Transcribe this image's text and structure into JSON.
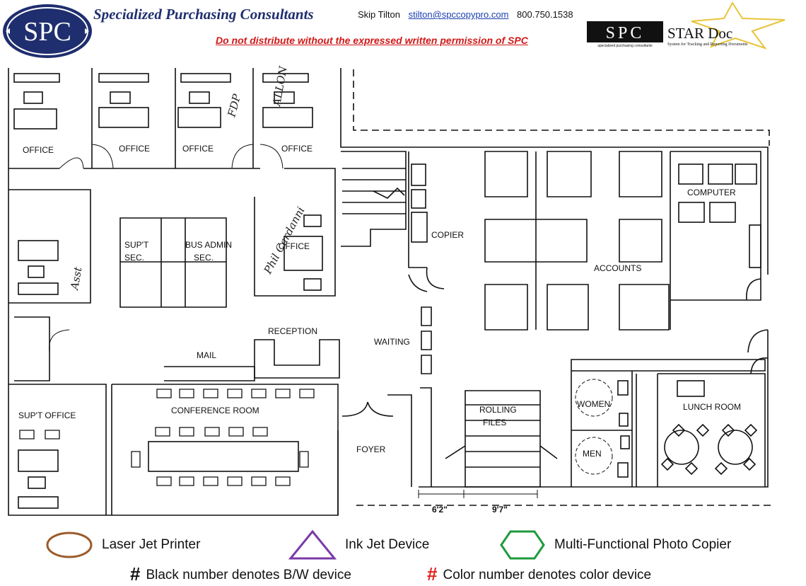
{
  "header": {
    "logo_text": "SPC",
    "company_name": "Specialized Purchasing Consultants",
    "contact_name": "Skip Tilton",
    "contact_email": "stilton@spccopypro.com",
    "contact_phone": "800.750.1538",
    "warning": "Do not distribute without the expressed written permission of SPC",
    "stardoc_logo": "SPC",
    "stardoc_title": "STAR Doc",
    "stardoc_subtitle": "specialized purchasing consultants",
    "stardoc_tagline": "System for Tracking and Reporting Documents"
  },
  "rooms": {
    "office_1": "OFFICE",
    "office_2": "OFFICE",
    "office_3": "OFFICE",
    "office_4": "OFFICE",
    "office_5": "OFFICE",
    "supt_sec_1": "SUP'T",
    "supt_sec_2": "SEC.",
    "bus_admin_1": "BUS ADMIN",
    "bus_admin_2": "SEC.",
    "reception": "RECEPTION",
    "mail": "MAIL",
    "waiting": "WAITING",
    "copier": "COPIER",
    "accounts": "ACCOUNTS",
    "computer": "COMPUTER",
    "supt_office": "SUP'T OFFICE",
    "conference": "CONFERENCE ROOM",
    "foyer": "FOYER",
    "rolling_1": "ROLLING",
    "rolling_2": "FILES",
    "women": "WOMEN",
    "men": "MEN",
    "lunch": "LUNCH ROOM"
  },
  "dimensions": {
    "dim_1": "6'2\"",
    "dim_2": "9'7\""
  },
  "handwritten": {
    "note_1": "FDP",
    "note_2": "ALLON",
    "note_3": "Asst",
    "note_4": "Phil Cardanni"
  },
  "legend": {
    "laser": "Laser Jet Printer",
    "inkjet": "Ink Jet Device",
    "mfp": "Multi-Functional Photo Copier",
    "symbol": "#",
    "bw_note": "Black number denotes B/W device",
    "color_note": "Color number denotes color device",
    "colors": {
      "laser": "#9b5a2a",
      "inkjet": "#7a3aa8",
      "mfp": "#1f9a3c",
      "color_symbol": "#e0201a",
      "brand_navy": "#1f2e6e"
    }
  }
}
